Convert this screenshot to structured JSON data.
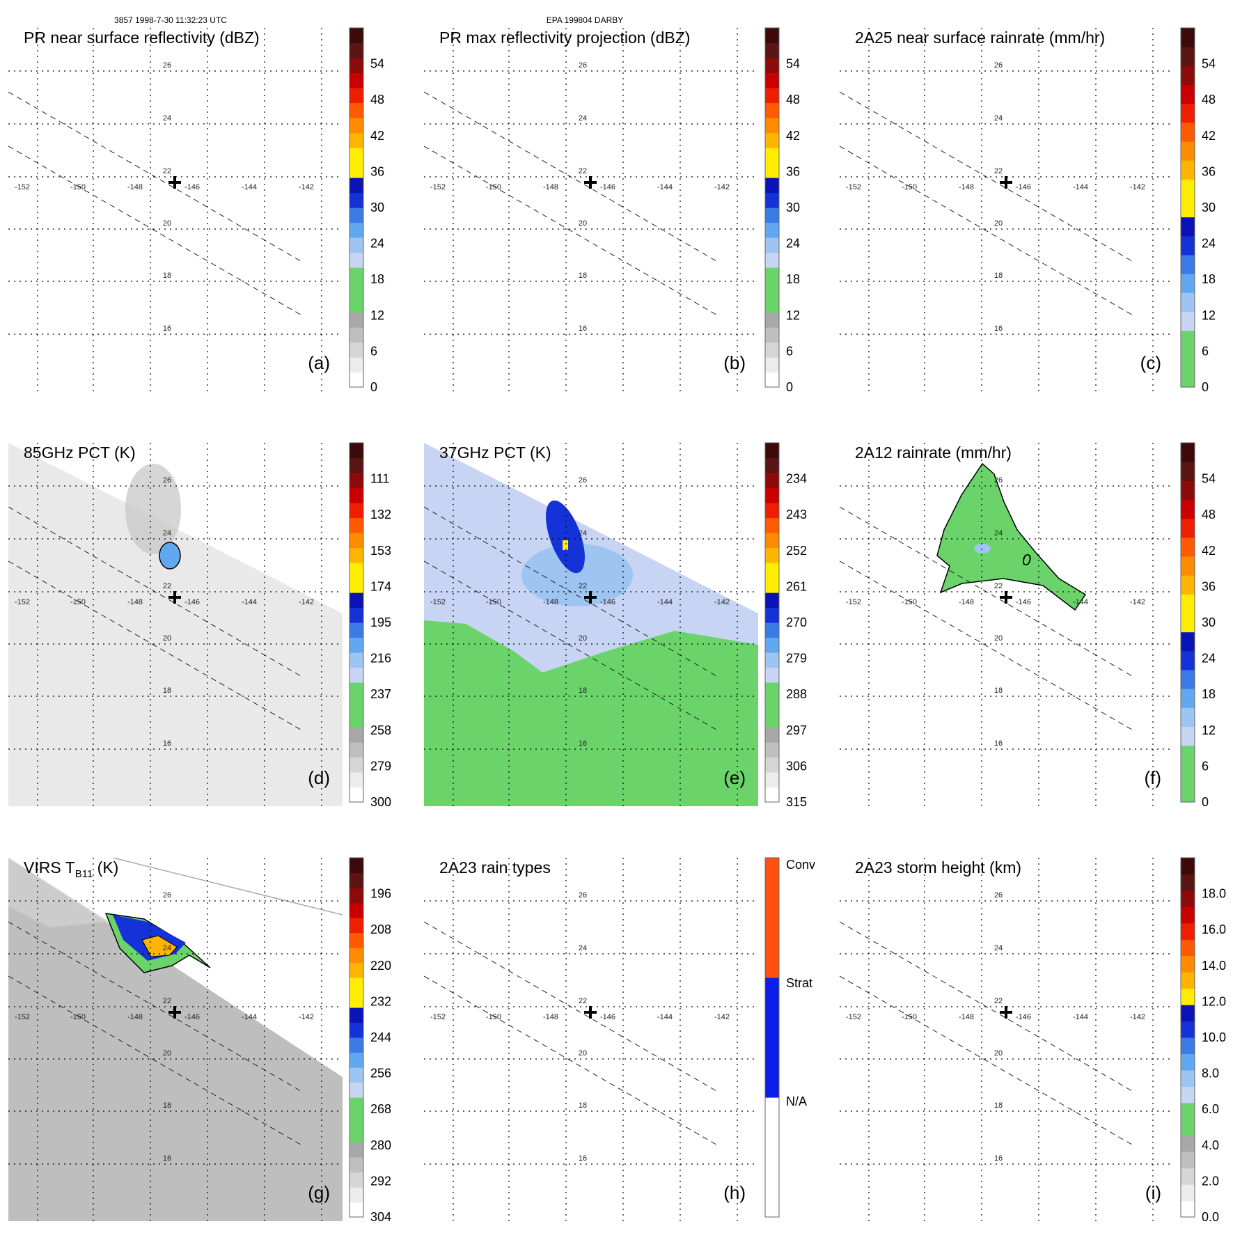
{
  "header": {
    "left": "3857 1998-7-30 11:32:23 UTC",
    "center": "EPA 199804 DARBY"
  },
  "colors": {
    "gray_scale": [
      "#ffffff",
      "#ececec",
      "#d6d6d6",
      "#bfbfbf",
      "#a8a8a8"
    ],
    "green": "#6ad46a",
    "blues": [
      "#c8d4f4",
      "#9ec4f2",
      "#62a8f0",
      "#3c7ae6",
      "#1432d6",
      "#0a14b4"
    ],
    "warm": [
      "#ffee00",
      "#ffb400",
      "#ff8c00",
      "#ff5a00",
      "#f01e00",
      "#c80000",
      "#8c0a0a",
      "#5a1414",
      "#3c0a0a"
    ],
    "rain_types": [
      "#ffffff",
      "#0a1eea",
      "#ff5010"
    ]
  },
  "grid": {
    "lon_ticks": [
      "-152",
      "-150",
      "-148",
      "-146",
      "-144",
      "-142"
    ],
    "lat_ticks": [
      "26",
      "24",
      "22",
      "20",
      "18",
      "16"
    ]
  },
  "panels": [
    {
      "id": "a",
      "title": "PR near surface reflectivity (dBZ)",
      "label": "(a)",
      "ticks": [
        "0",
        "6",
        "12",
        "18",
        "24",
        "30",
        "36",
        "42",
        "48",
        "54"
      ],
      "scale": "dbz",
      "field": "none"
    },
    {
      "id": "b",
      "title": "PR max reflectivity projection (dBZ)",
      "label": "(b)",
      "ticks": [
        "0",
        "6",
        "12",
        "18",
        "24",
        "30",
        "36",
        "42",
        "48",
        "54"
      ],
      "scale": "dbz",
      "field": "none"
    },
    {
      "id": "c",
      "title": "2A25 near surface rainrate (mm/hr)",
      "label": "(c)",
      "ticks": [
        "0",
        "6",
        "12",
        "18",
        "24",
        "30",
        "36",
        "42",
        "48",
        "54"
      ],
      "scale": "rain",
      "field": "none"
    },
    {
      "id": "d",
      "title": "85GHz PCT (K)",
      "label": "(d)",
      "ticks": [
        "300",
        "279",
        "258",
        "237",
        "216",
        "195",
        "174",
        "153",
        "132",
        "111"
      ],
      "scale": "pct",
      "field": "pct85"
    },
    {
      "id": "e",
      "title": "37GHz PCT (K)",
      "label": "(e)",
      "ticks": [
        "315",
        "306",
        "297",
        "288",
        "279",
        "270",
        "261",
        "252",
        "243",
        "234"
      ],
      "scale": "pct",
      "field": "pct37"
    },
    {
      "id": "f",
      "title": "2A12 rainrate (mm/hr)",
      "label": "(f)",
      "ticks": [
        "0",
        "6",
        "12",
        "18",
        "24",
        "30",
        "36",
        "42",
        "48",
        "54"
      ],
      "scale": "rain",
      "field": "rain2a12",
      "contour_label": "0"
    },
    {
      "id": "g",
      "title_main": "VIRS T",
      "title_sub": "B11",
      "title_tail": " (K)",
      "label": "(g)",
      "ticks": [
        "304",
        "292",
        "280",
        "268",
        "256",
        "244",
        "232",
        "220",
        "208",
        "196"
      ],
      "scale": "pct",
      "field": "virs"
    },
    {
      "id": "h",
      "title": "2A23 rain types",
      "label": "(h)",
      "ticks": [
        "N/A",
        "Strat",
        "Conv"
      ],
      "scale": "types",
      "field": "none"
    },
    {
      "id": "i",
      "title": "2A23 storm height (km)",
      "label": "(i)",
      "ticks": [
        "0.0",
        "2.0",
        "4.0",
        "6.0",
        "8.0",
        "10.0",
        "12.0",
        "14.0",
        "16.0",
        "18.0"
      ],
      "scale": "height",
      "field": "none"
    }
  ]
}
